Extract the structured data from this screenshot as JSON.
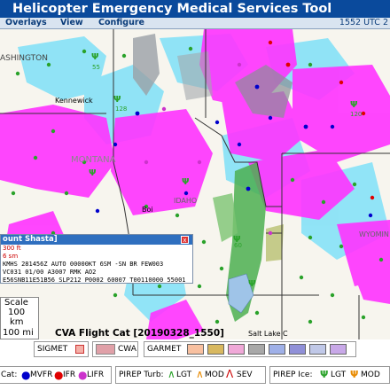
{
  "app": {
    "title": "Helicopter Emergency Medical Services Tool",
    "clock": "1552 UTC 2"
  },
  "menu": [
    "Overlays",
    "View",
    "Configure"
  ],
  "map": {
    "place_labels": [
      "ASHINGTON",
      "Kennewick",
      "MONTANA",
      "Boi",
      "IDAHO",
      "WYOMIN",
      "Salt Lake C"
    ],
    "route_labels": [
      "55",
      "128",
      "120",
      "60"
    ]
  },
  "popup": {
    "title": "ount Shasta]",
    "alt": "300 ft",
    "vis": "6 sm",
    "metar": [
      "KMHS 281456Z AUTO 00000KT 6SM -SN BR FEW003",
      "VC031 01/00 A3007 RMK AO2",
      "E56SNB11E51B56 SLP212 P0002 60007 T00110000 55001"
    ],
    "close_label": "x"
  },
  "scale": {
    "title": "Scale",
    "value1": "100",
    "unit1": "km",
    "value2": "100 mi"
  },
  "caption": "CVA Flight Cat [20190328_1550]",
  "legend": {
    "sigmet": "SIGMET",
    "cwa": "CWA",
    "garmet": "GARMET",
    "garmet_colors": [
      "#f8c0a0",
      "#d8b860",
      "#f0a8d8",
      "#a8a8a8",
      "#9fb0e8",
      "#9090d8",
      "#c0c8e8",
      "#c8a8e8"
    ],
    "cat_label": "Cat:",
    "cat_items": [
      {
        "label": "MVFR",
        "color": "#0000cc"
      },
      {
        "label": "IFR",
        "color": "#e00000"
      },
      {
        "label": "LIFR",
        "color": "#cc33cc"
      }
    ],
    "turb_label": "PIREP Turb:",
    "turb_items": [
      {
        "label": "LGT",
        "color": "#2aa22a"
      },
      {
        "label": "MOD",
        "color": "#e88a00"
      },
      {
        "label": "SEV",
        "color": "#cc0000"
      }
    ],
    "ice_label": "PIREP Ice:",
    "ice_items": [
      {
        "label": "LGT",
        "color": "#2aa22a"
      },
      {
        "label": "MOD",
        "color": "#e88a00"
      }
    ]
  },
  "colors": {
    "title_bar": "#0a4a9c",
    "ifr_magenta": "#ff33ff",
    "mvfr_blue": "#66d8f8",
    "radar_green": "#4caf50"
  }
}
